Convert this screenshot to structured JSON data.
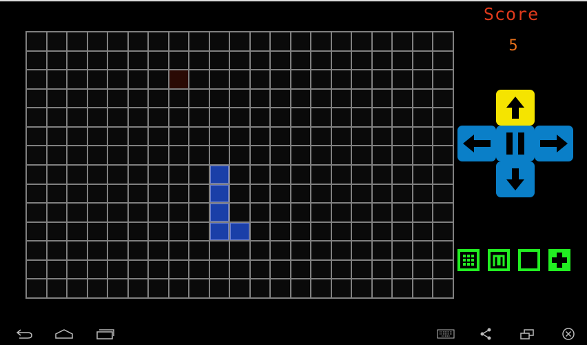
{
  "score": {
    "label": "Score",
    "value": "5"
  },
  "board": {
    "columns": 21,
    "rows": 14,
    "snake": [
      [
        9,
        7
      ],
      [
        9,
        8
      ],
      [
        9,
        9
      ],
      [
        9,
        10
      ],
      [
        10,
        10
      ]
    ],
    "food": [
      7,
      2
    ]
  },
  "controls": [
    "up",
    "left",
    "pause",
    "right",
    "down"
  ],
  "tools": [
    "grid-icon",
    "maze-icon",
    "border-icon",
    "plus-icon"
  ],
  "nav": [
    "back",
    "home",
    "recents",
    "keyboard",
    "share",
    "window",
    "close"
  ],
  "colors": {
    "snake": "#1a3fa8",
    "food": "#2a0a04",
    "grid_line": "#808080",
    "dpad": "#0a7fc8",
    "dpad_active": "#f5e400",
    "tool": "#22ee22",
    "score_label": "#e03a1c",
    "score_value": "#e8701a"
  }
}
